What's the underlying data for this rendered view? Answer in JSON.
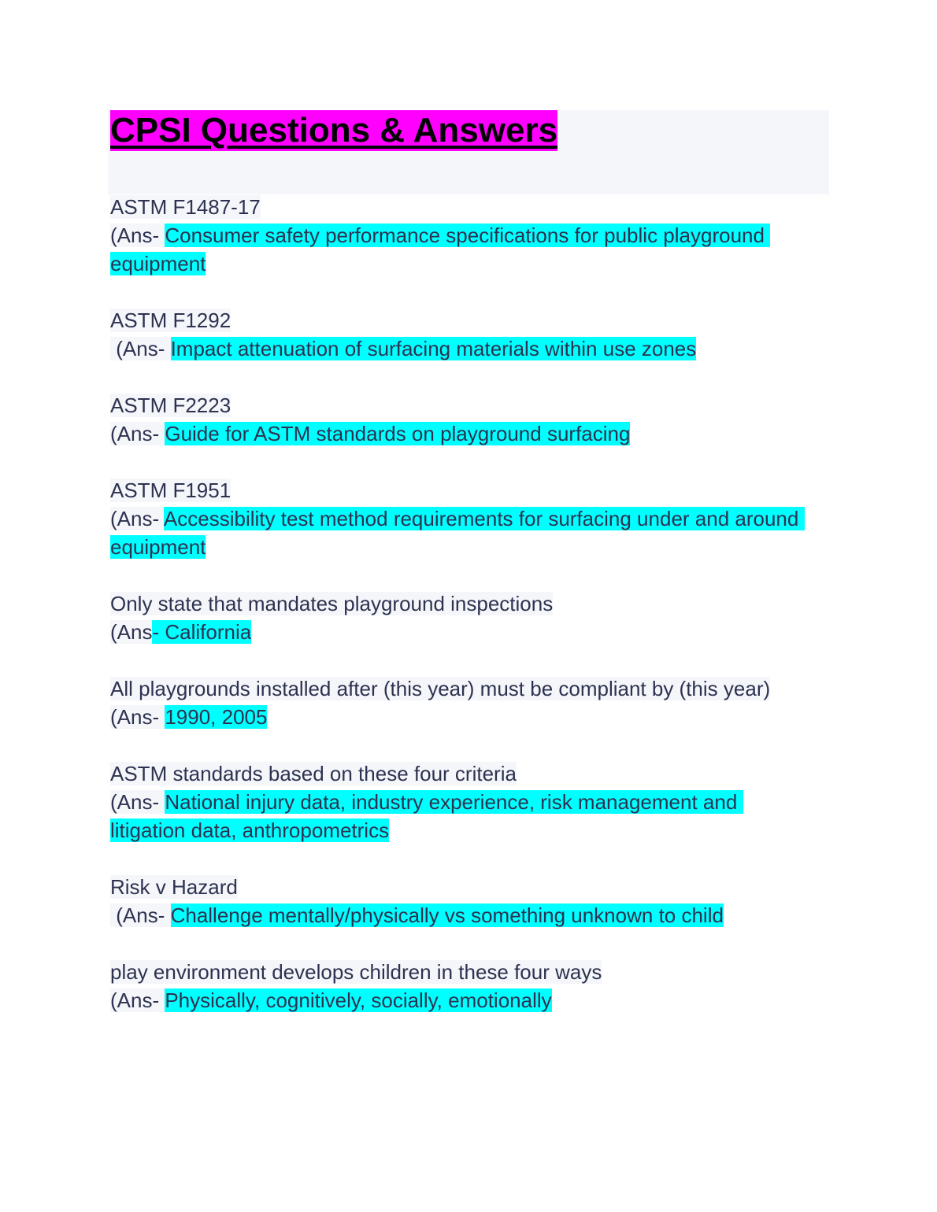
{
  "title": "CPSI Questions & Answers",
  "colors": {
    "title_highlight": "#ff00ff",
    "answer_highlight": "#00ffff",
    "text": "#2d3250"
  },
  "items": [
    {
      "question": "ASTM F1487-17",
      "prefix": "(Ans- ",
      "answer": "Consumer safety performance specifications for public playground equipment"
    },
    {
      "question": "ASTM F1292",
      "prefix": " (Ans- ",
      "answer": "Impact attenuation of surfacing materials within use zones"
    },
    {
      "question": "ASTM F2223",
      "prefix": "(Ans- ",
      "answer": "Guide for ASTM standards on playground surfacing"
    },
    {
      "question": "ASTM F1951",
      "prefix": "(Ans- ",
      "answer": "Accessibility test method requirements for surfacing under and around equipment"
    },
    {
      "question": "Only state that mandates playground inspections",
      "prefix": "(Ans",
      "answer": "- California"
    },
    {
      "question": "All playgrounds installed after (this year) must be compliant by (this year)",
      "prefix": "(Ans- ",
      "answer": "1990, 2005"
    },
    {
      "question": "ASTM standards based on these four criteria",
      "prefix": "(Ans- ",
      "answer": "National injury data, industry experience, risk management and litigation data, anthropometrics"
    },
    {
      "question": "Risk v Hazard",
      "prefix": " (Ans- ",
      "answer": "Challenge mentally/physically vs something unknown to child"
    },
    {
      "question": "play environment develops children in these four ways",
      "prefix": "(Ans- ",
      "answer": "Physically, cognitively, socially, emotionally"
    }
  ]
}
